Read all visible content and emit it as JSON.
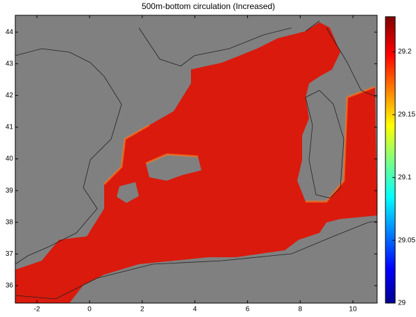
{
  "chart_data": {
    "type": "map",
    "title": "500m-bottom circulation (Increased)",
    "xlim": [
      -2.82,
      10.92
    ],
    "xticks": [
      -2,
      0,
      2,
      4,
      6,
      8,
      10
    ],
    "ylim": [
      35.45,
      44.53
    ],
    "yticks": [
      36,
      37,
      38,
      39,
      40,
      41,
      42,
      43,
      44
    ],
    "colorbar": {
      "lim": [
        29,
        29.228
      ],
      "ticks": [
        29,
        29.05,
        29.1,
        29.15,
        29.2
      ]
    }
  }
}
